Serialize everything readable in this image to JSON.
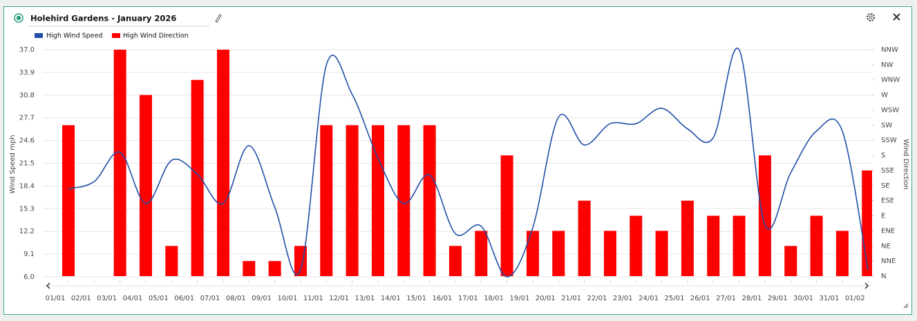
{
  "chart_data": {
    "type": "bar-line",
    "title": "Holehird Gardens - January 2026",
    "y_label": "Wind Speed mph",
    "y2_label": "Wind Direction",
    "categories": [
      "01/01",
      "02/01",
      "03/01",
      "04/01",
      "05/01",
      "06/01",
      "07/01",
      "08/01",
      "09/01",
      "10/01",
      "11/01",
      "12/01",
      "13/01",
      "14/01",
      "15/01",
      "16/01",
      "17/01",
      "18/01",
      "19/01",
      "20/01",
      "21/01",
      "22/01",
      "23/01",
      "24/01",
      "25/01",
      "26/01",
      "27/01",
      "28/01",
      "29/01",
      "30/01",
      "31/01",
      "01/02"
    ],
    "series": [
      {
        "name": "High Wind Speed",
        "type": "line",
        "color": "#1f4ea8",
        "values": [
          18.0,
          19.0,
          23.0,
          16.0,
          21.9,
          20.0,
          16.0,
          23.9,
          15.5,
          7.0,
          34.9,
          30.9,
          22.2,
          16.0,
          19.9,
          11.9,
          12.9,
          6.0,
          12.7,
          27.8,
          24.0,
          26.9,
          26.9,
          29.0,
          26.2,
          25.0,
          37.0,
          13.1,
          20.2,
          25.9,
          25.9,
          6.9
        ]
      },
      {
        "name": "High Wind Direction",
        "type": "bar",
        "axis": "y2",
        "color": "#ff0000",
        "values": [
          10,
          null,
          15,
          12,
          2,
          13,
          15,
          1,
          1,
          2,
          10,
          10,
          10,
          10,
          10,
          2,
          3,
          8,
          3,
          3,
          5,
          3,
          4,
          3,
          5,
          4,
          4,
          8,
          2,
          4,
          3,
          7
        ]
      }
    ],
    "ylim": [
      6.0,
      37.0
    ],
    "yticks": [
      {
        "value": 6.0,
        "label": "6.0"
      },
      {
        "value": 9.1,
        "label": "9.1"
      },
      {
        "value": 12.2,
        "label": "12.2"
      },
      {
        "value": 15.3,
        "label": "15.3"
      },
      {
        "value": 18.4,
        "label": "18.4"
      },
      {
        "value": 21.5,
        "label": "21.5"
      },
      {
        "value": 24.6,
        "label": "24.6"
      },
      {
        "value": 27.7,
        "label": "27.7"
      },
      {
        "value": 30.8,
        "label": "30.8"
      },
      {
        "value": 33.9,
        "label": "33.9"
      },
      {
        "value": 37.0,
        "label": "37.0"
      }
    ],
    "y2lim": [
      0,
      15
    ],
    "y2ticks": [
      {
        "value": 0,
        "label": "N"
      },
      {
        "value": 1,
        "label": "NNE"
      },
      {
        "value": 2,
        "label": "NE"
      },
      {
        "value": 3,
        "label": "ENE"
      },
      {
        "value": 4,
        "label": "E"
      },
      {
        "value": 5,
        "label": "ESE"
      },
      {
        "value": 6,
        "label": "SE"
      },
      {
        "value": 7,
        "label": "SSE"
      },
      {
        "value": 8,
        "label": "S"
      },
      {
        "value": 9,
        "label": "SSW"
      },
      {
        "value": 10,
        "label": "SW"
      },
      {
        "value": 11,
        "label": "WSW"
      },
      {
        "value": 12,
        "label": "W"
      },
      {
        "value": 13,
        "label": "WNW"
      },
      {
        "value": 14,
        "label": "NW"
      },
      {
        "value": 15,
        "label": "NNW"
      }
    ],
    "grid": true
  }
}
